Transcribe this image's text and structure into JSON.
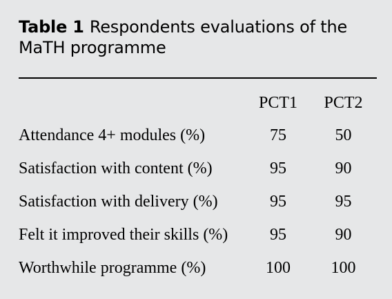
{
  "caption": {
    "label": "Table 1",
    "title": "Respondents evaluations of the MaTH programme"
  },
  "table": {
    "columns": [
      "",
      "PCT1",
      "PCT2"
    ],
    "rows": [
      {
        "label": "Attendance 4+ modules (%)",
        "pct1": "75",
        "pct2": "50"
      },
      {
        "label": "Satisfaction with content (%)",
        "pct1": "95",
        "pct2": "90"
      },
      {
        "label": "Satisfaction with delivery (%)",
        "pct1": "95",
        "pct2": "95"
      },
      {
        "label": "Felt it improved their skills (%)",
        "pct1": "95",
        "pct2": "90"
      },
      {
        "label": "Worthwhile programme (%)",
        "pct1": "100",
        "pct2": "100"
      }
    ]
  }
}
